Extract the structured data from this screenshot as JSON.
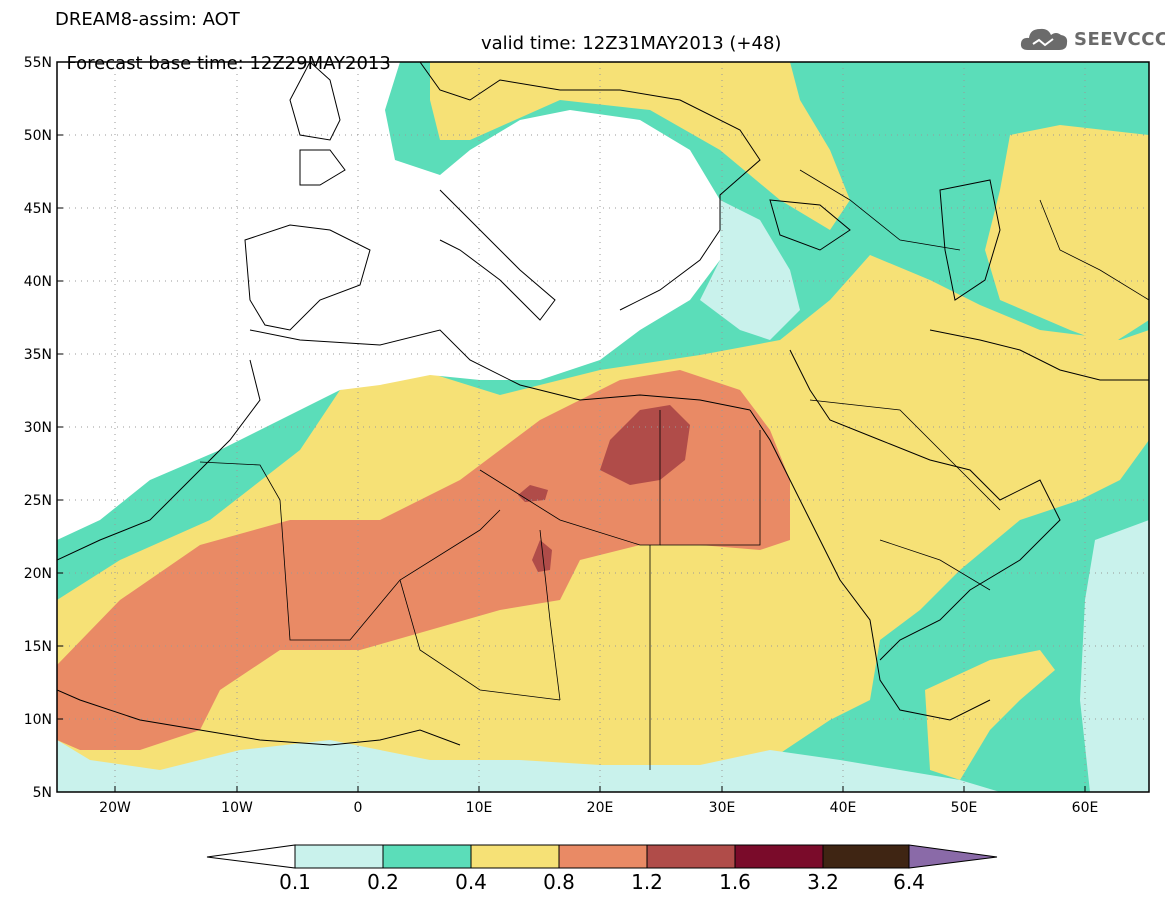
{
  "header": {
    "line1": "DREAM8-assim: AOT",
    "base_time": "Forecast base time: 12Z29MAY2013",
    "valid_time": "valid time: 12Z31MAY2013 (+48)"
  },
  "logo": {
    "text": "SEEVCCC",
    "icon": "cloud-icon",
    "color": "#6b6b6b"
  },
  "map": {
    "lat_labels": [
      "55N",
      "50N",
      "45N",
      "40N",
      "35N",
      "30N",
      "25N",
      "20N",
      "15N",
      "10N",
      "5N"
    ],
    "lon_labels": [
      "20W",
      "10W",
      "0",
      "10E",
      "20E",
      "30E",
      "40E",
      "50E",
      "60E"
    ],
    "colors": {
      "white": "#ffffff",
      "c01": "#c9f2ec",
      "c02": "#5bddb9",
      "c04": "#f6e176",
      "c08": "#e98a65",
      "c12": "#b04c49",
      "c16": "#7a0b2a",
      "c32": "#3f2513",
      "c64": "#8a6aa8",
      "lines": "#000000"
    }
  },
  "colorbar": {
    "labels": [
      "0.1",
      "0.2",
      "0.4",
      "0.8",
      "1.2",
      "1.6",
      "3.2",
      "6.4"
    ],
    "colors": [
      "#ffffff",
      "#c9f2ec",
      "#5bddb9",
      "#f6e176",
      "#e98a65",
      "#b04c49",
      "#7a0b2a",
      "#3f2513",
      "#8a6aa8"
    ]
  }
}
